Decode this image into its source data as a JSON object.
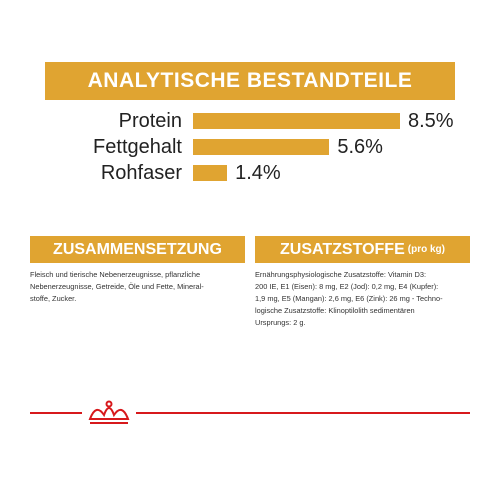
{
  "chart_data": {
    "type": "bar",
    "orientation": "horizontal",
    "title": "ANALYTISCHE BESTANDTEILE",
    "categories": [
      "Protein",
      "Fettgehalt",
      "Rohfaser"
    ],
    "values": [
      8.5,
      5.6,
      1.4
    ],
    "value_labels": [
      "8.5%",
      "5.6%",
      "1.4%"
    ],
    "color": "#e0a431",
    "xlim": [
      0,
      8.5
    ]
  },
  "sections": [
    {
      "title": "ZUSAMMENSETZUNG",
      "lines": [
        "Fleisch und tierische Nebenerzeugnisse, pflanzliche",
        "Nebenerzeugnisse, Getreide, Öle und Fette, Mineral-",
        "stoffe, Zucker."
      ]
    },
    {
      "title": "ZUSATZSTOFFE",
      "subtitle": "(pro kg)",
      "lines": [
        "Ernährungsphysiologische Zusatzstoffe: Vitamin D3:",
        "200 IE, E1 (Eisen): 8 mg, E2 (Jod): 0,2 mg, E4 (Kupfer):",
        "1,9 mg, E5 (Mangan): 2,6 mg, E6 (Zink): 26 mg - Techno-",
        "logische Zusatzstoffe: Klinoptilolith sedimentären",
        "Ursprungs: 2 g."
      ]
    }
  ]
}
